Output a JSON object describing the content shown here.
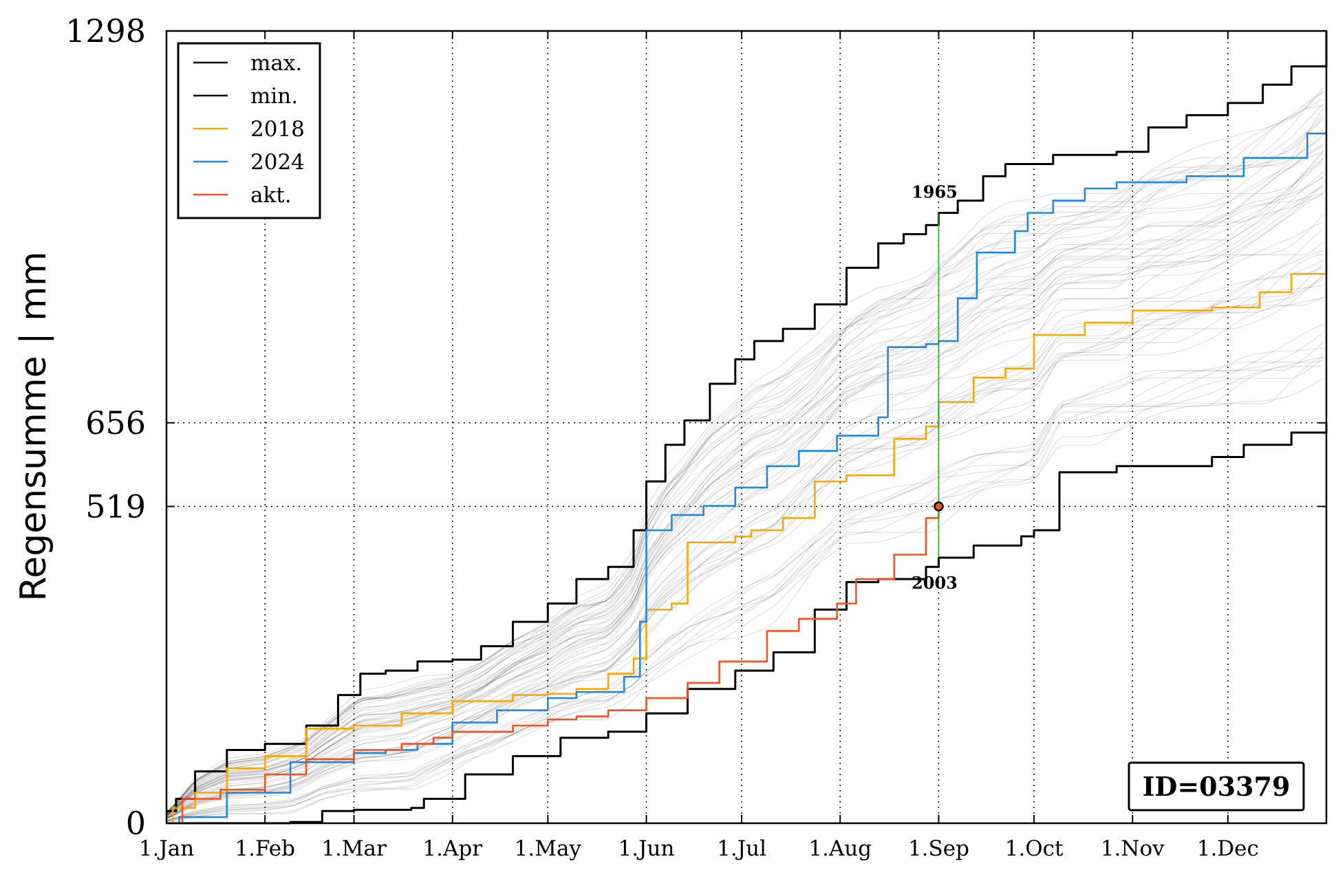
{
  "chart_data": {
    "type": "line",
    "ylabel": "Regensumme | mm",
    "xlabel": "",
    "y_tick_labels": [
      "0",
      "519",
      "656",
      "1298"
    ],
    "y_ticks": [
      0,
      519,
      656,
      1298
    ],
    "ylim": [
      0,
      1298
    ],
    "x_tick_labels": [
      "1.Jan",
      "1.Feb",
      "1.Mar",
      "1.Apr",
      "1.May",
      "1.Jun",
      "1.Jul",
      "1.Aug",
      "1.Sep",
      "1.Oct",
      "1.Nov",
      "1.Dec"
    ],
    "x_ticks": [
      1,
      32,
      60,
      91,
      121,
      152,
      182,
      213,
      244,
      274,
      305,
      335
    ],
    "xlim": [
      1,
      366
    ],
    "grid": "dotted",
    "legend_position": "top-left",
    "legend": [
      {
        "label": "max.",
        "color": "#000000"
      },
      {
        "label": "min.",
        "color": "#000000"
      },
      {
        "label": "2018",
        "color": "#FFA500"
      },
      {
        "label": "2024",
        "color": "#1E88E5"
      },
      {
        "label": "akt.",
        "color": "#F4511E"
      }
    ],
    "series": [
      {
        "name": "max.",
        "color": "#000000",
        "points": [
          [
            1,
            20
          ],
          [
            4,
            40
          ],
          [
            10,
            85
          ],
          [
            20,
            120
          ],
          [
            32,
            130
          ],
          [
            45,
            160
          ],
          [
            55,
            210
          ],
          [
            62,
            245
          ],
          [
            70,
            250
          ],
          [
            80,
            265
          ],
          [
            91,
            268
          ],
          [
            100,
            290
          ],
          [
            110,
            330
          ],
          [
            121,
            360
          ],
          [
            130,
            400
          ],
          [
            140,
            420
          ],
          [
            148,
            480
          ],
          [
            152,
            560
          ],
          [
            158,
            620
          ],
          [
            164,
            660
          ],
          [
            172,
            720
          ],
          [
            180,
            760
          ],
          [
            186,
            790
          ],
          [
            195,
            810
          ],
          [
            205,
            850
          ],
          [
            215,
            910
          ],
          [
            225,
            950
          ],
          [
            233,
            965
          ],
          [
            240,
            980
          ],
          [
            244,
            1000
          ],
          [
            250,
            1020
          ],
          [
            258,
            1060
          ],
          [
            265,
            1080
          ],
          [
            280,
            1095
          ],
          [
            300,
            1100
          ],
          [
            310,
            1140
          ],
          [
            322,
            1160
          ],
          [
            335,
            1180
          ],
          [
            346,
            1210
          ],
          [
            355,
            1240
          ],
          [
            366,
            1298
          ]
        ]
      },
      {
        "name": "min.",
        "color": "#000000",
        "points": [
          [
            1,
            0
          ],
          [
            30,
            0
          ],
          [
            40,
            2
          ],
          [
            50,
            20
          ],
          [
            60,
            22
          ],
          [
            78,
            25
          ],
          [
            82,
            40
          ],
          [
            95,
            80
          ],
          [
            110,
            110
          ],
          [
            125,
            140
          ],
          [
            140,
            150
          ],
          [
            152,
            180
          ],
          [
            165,
            220
          ],
          [
            180,
            250
          ],
          [
            192,
            280
          ],
          [
            205,
            350
          ],
          [
            215,
            395
          ],
          [
            225,
            400
          ],
          [
            240,
            420
          ],
          [
            244,
            435
          ],
          [
            255,
            455
          ],
          [
            270,
            470
          ],
          [
            274,
            480
          ],
          [
            282,
            575
          ],
          [
            300,
            585
          ],
          [
            330,
            600
          ],
          [
            340,
            620
          ],
          [
            355,
            640
          ],
          [
            366,
            656
          ]
        ]
      },
      {
        "name": "2018",
        "color": "#FFA500",
        "points": [
          [
            1,
            0
          ],
          [
            3,
            25
          ],
          [
            10,
            50
          ],
          [
            20,
            90
          ],
          [
            32,
            110
          ],
          [
            45,
            155
          ],
          [
            60,
            160
          ],
          [
            75,
            180
          ],
          [
            91,
            200
          ],
          [
            110,
            210
          ],
          [
            121,
            212
          ],
          [
            130,
            220
          ],
          [
            140,
            245
          ],
          [
            148,
            270
          ],
          [
            152,
            350
          ],
          [
            160,
            360
          ],
          [
            165,
            460
          ],
          [
            180,
            470
          ],
          [
            185,
            480
          ],
          [
            195,
            500
          ],
          [
            205,
            560
          ],
          [
            215,
            570
          ],
          [
            230,
            630
          ],
          [
            240,
            650
          ],
          [
            244,
            690
          ],
          [
            255,
            730
          ],
          [
            265,
            745
          ],
          [
            274,
            800
          ],
          [
            290,
            820
          ],
          [
            305,
            840
          ],
          [
            330,
            845
          ],
          [
            345,
            870
          ],
          [
            355,
            900
          ],
          [
            366,
            940
          ]
        ]
      },
      {
        "name": "2024",
        "color": "#1E88E5",
        "points": [
          [
            1,
            0
          ],
          [
            5,
            10
          ],
          [
            20,
            50
          ],
          [
            40,
            100
          ],
          [
            60,
            115
          ],
          [
            70,
            120
          ],
          [
            80,
            130
          ],
          [
            91,
            165
          ],
          [
            105,
            185
          ],
          [
            121,
            205
          ],
          [
            130,
            215
          ],
          [
            145,
            240
          ],
          [
            150,
            330
          ],
          [
            152,
            480
          ],
          [
            160,
            505
          ],
          [
            170,
            520
          ],
          [
            180,
            550
          ],
          [
            190,
            585
          ],
          [
            200,
            610
          ],
          [
            212,
            635
          ],
          [
            225,
            665
          ],
          [
            228,
            780
          ],
          [
            240,
            785
          ],
          [
            244,
            790
          ],
          [
            250,
            860
          ],
          [
            256,
            935
          ],
          [
            268,
            970
          ],
          [
            272,
            1000
          ],
          [
            280,
            1020
          ],
          [
            290,
            1040
          ],
          [
            300,
            1050
          ],
          [
            315,
            1050
          ],
          [
            322,
            1060
          ],
          [
            340,
            1090
          ],
          [
            360,
            1130
          ],
          [
            366,
            1130
          ]
        ]
      },
      {
        "name": "akt.",
        "color": "#F4511E",
        "points": [
          [
            1,
            0
          ],
          [
            6,
            40
          ],
          [
            18,
            55
          ],
          [
            32,
            80
          ],
          [
            45,
            105
          ],
          [
            60,
            120
          ],
          [
            75,
            130
          ],
          [
            85,
            140
          ],
          [
            91,
            150
          ],
          [
            110,
            160
          ],
          [
            121,
            170
          ],
          [
            130,
            175
          ],
          [
            140,
            185
          ],
          [
            152,
            205
          ],
          [
            165,
            230
          ],
          [
            175,
            265
          ],
          [
            190,
            315
          ],
          [
            200,
            335
          ],
          [
            212,
            360
          ],
          [
            218,
            400
          ],
          [
            230,
            440
          ],
          [
            240,
            500
          ],
          [
            244,
            519
          ]
        ]
      }
    ],
    "annotations": {
      "max_year": "1965",
      "min_year": "2003",
      "current_marker": {
        "day": 244,
        "value": 519
      },
      "id_box": "ID=03379"
    }
  }
}
